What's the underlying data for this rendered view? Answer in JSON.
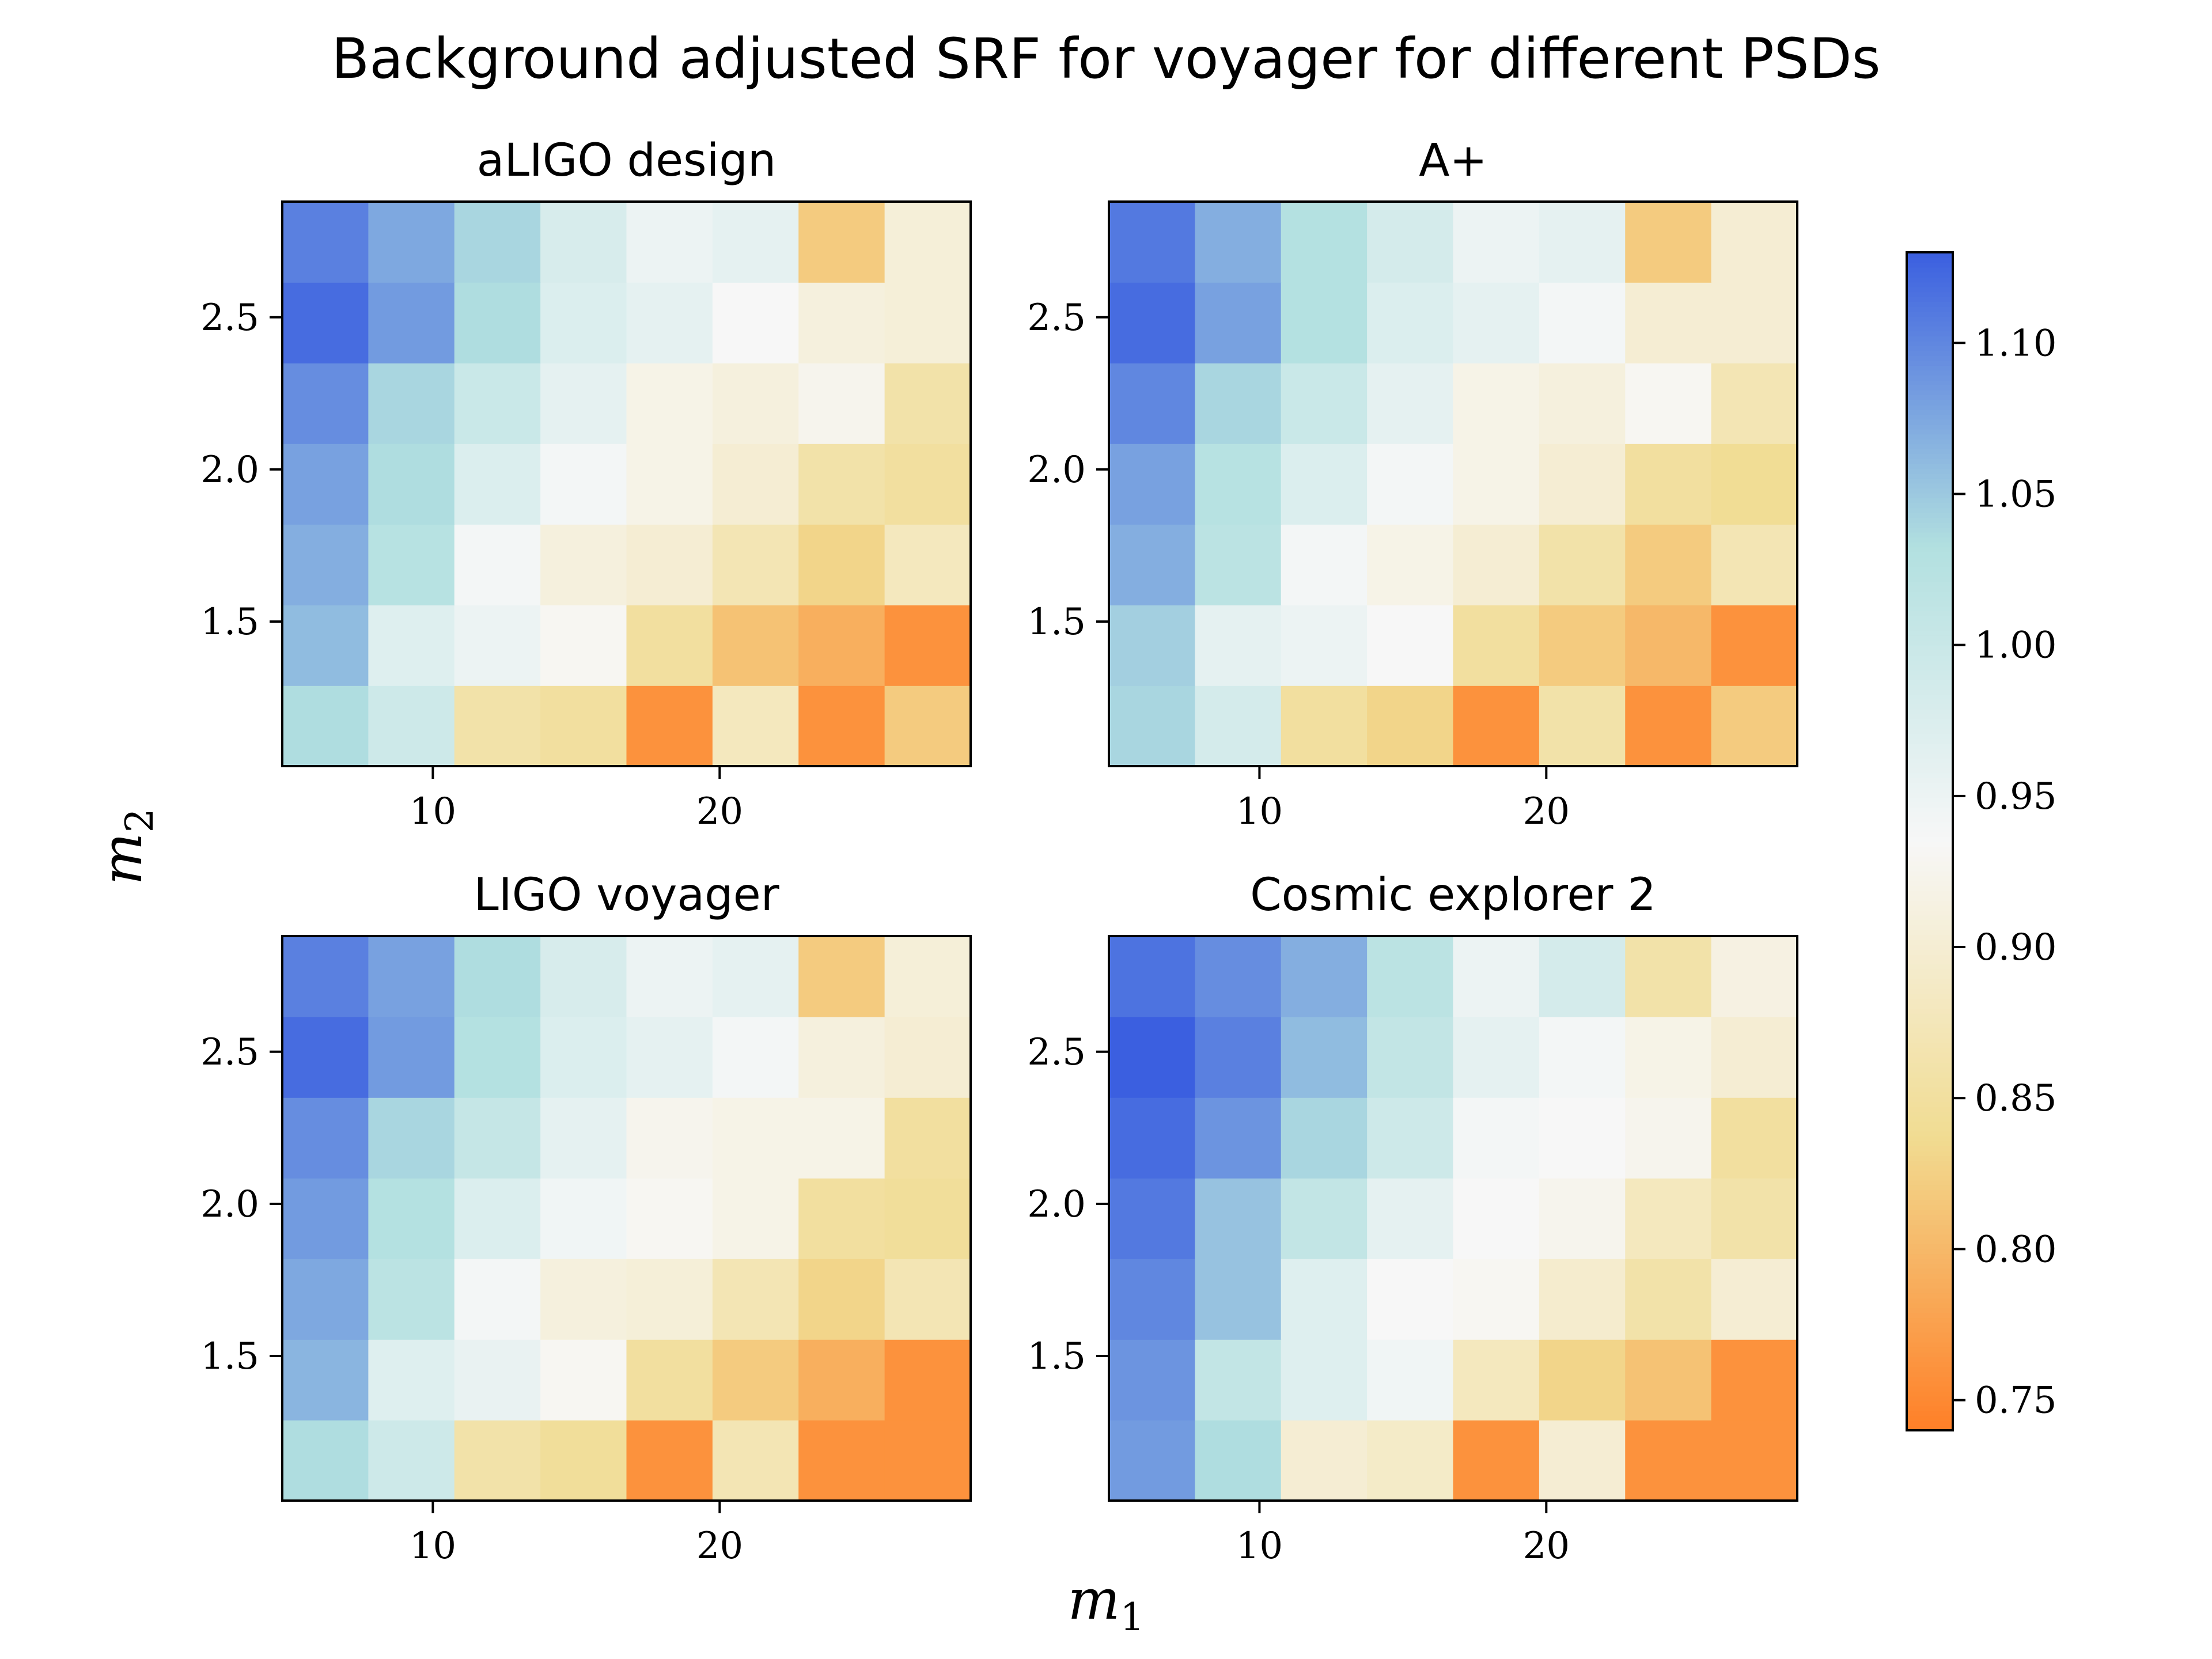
{
  "figure": {
    "suptitle": "Background adjusted SRF for voyager for different PSDs",
    "xlabel_base": "m",
    "xlabel_sub": "1",
    "ylabel_base": "m",
    "ylabel_sub": "2"
  },
  "chart_data": [
    {
      "type": "heatmap",
      "title": "aLIGO design",
      "x_edges": [
        4.75,
        7.75,
        10.75,
        13.75,
        16.75,
        19.75,
        22.75,
        25.75,
        28.75
      ],
      "y_edges": [
        1.025,
        1.29,
        1.555,
        1.82,
        2.085,
        2.35,
        2.615,
        2.88
      ],
      "xticks": [
        10,
        20
      ],
      "xtick_labels": [
        "10",
        "20"
      ],
      "yticks": [
        1.5,
        2.0,
        2.5
      ],
      "ytick_labels": [
        "1.5",
        "2.0",
        "2.5"
      ],
      "z_rows_bottom_to_top": [
        [
          1.035,
          0.995,
          0.86,
          0.85,
          0.76,
          0.88,
          0.76,
          0.82
        ],
        [
          1.06,
          0.97,
          0.95,
          0.93,
          0.85,
          0.81,
          0.79,
          0.76
        ],
        [
          1.07,
          1.025,
          0.94,
          0.91,
          0.9,
          0.87,
          0.83,
          0.88
        ],
        [
          1.08,
          1.035,
          0.975,
          0.94,
          0.92,
          0.9,
          0.86,
          0.85
        ],
        [
          1.095,
          1.04,
          1.0,
          0.96,
          0.92,
          0.91,
          0.925,
          0.86
        ],
        [
          1.12,
          1.085,
          1.035,
          0.975,
          0.96,
          0.935,
          0.91,
          0.905
        ],
        [
          1.105,
          1.075,
          1.04,
          0.98,
          0.95,
          0.96,
          0.82,
          0.905
        ]
      ]
    },
    {
      "type": "heatmap",
      "title": "A+",
      "x_edges": [
        4.75,
        7.75,
        10.75,
        13.75,
        16.75,
        19.75,
        22.75,
        25.75,
        28.75
      ],
      "y_edges": [
        1.025,
        1.29,
        1.555,
        1.82,
        2.085,
        2.35,
        2.615,
        2.88
      ],
      "xticks": [
        10,
        20
      ],
      "xtick_labels": [
        "10",
        "20"
      ],
      "yticks": [
        1.5,
        2.0,
        2.5
      ],
      "ytick_labels": [
        "1.5",
        "2.0",
        "2.5"
      ],
      "z_rows_bottom_to_top": [
        [
          1.04,
          0.985,
          0.85,
          0.83,
          0.76,
          0.86,
          0.76,
          0.82
        ],
        [
          1.045,
          0.96,
          0.95,
          0.935,
          0.85,
          0.82,
          0.8,
          0.76
        ],
        [
          1.07,
          1.02,
          0.94,
          0.92,
          0.9,
          0.86,
          0.82,
          0.87
        ],
        [
          1.08,
          1.025,
          0.975,
          0.94,
          0.92,
          0.9,
          0.85,
          0.84
        ],
        [
          1.1,
          1.04,
          1.0,
          0.96,
          0.92,
          0.91,
          0.93,
          0.87
        ],
        [
          1.12,
          1.08,
          1.03,
          0.975,
          0.96,
          0.94,
          0.9,
          0.9
        ],
        [
          1.11,
          1.07,
          1.03,
          0.985,
          0.95,
          0.96,
          0.82,
          0.9
        ]
      ]
    },
    {
      "type": "heatmap",
      "title": "LIGO voyager",
      "x_edges": [
        4.75,
        7.75,
        10.75,
        13.75,
        16.75,
        19.75,
        22.75,
        25.75,
        28.75
      ],
      "y_edges": [
        1.025,
        1.29,
        1.555,
        1.82,
        2.085,
        2.35,
        2.615,
        2.88
      ],
      "xticks": [
        10,
        20
      ],
      "xtick_labels": [
        "10",
        "20"
      ],
      "yticks": [
        1.5,
        2.0,
        2.5
      ],
      "ytick_labels": [
        "1.5",
        "2.0",
        "2.5"
      ],
      "z_rows_bottom_to_top": [
        [
          1.035,
          0.995,
          0.86,
          0.845,
          0.76,
          0.87,
          0.76,
          0.76
        ],
        [
          1.065,
          0.97,
          0.955,
          0.93,
          0.85,
          0.82,
          0.79,
          0.76
        ],
        [
          1.075,
          1.02,
          0.94,
          0.91,
          0.905,
          0.87,
          0.83,
          0.87
        ],
        [
          1.085,
          1.03,
          0.975,
          0.945,
          0.93,
          0.92,
          0.85,
          0.845
        ],
        [
          1.095,
          1.04,
          1.005,
          0.96,
          0.925,
          0.92,
          0.92,
          0.85
        ],
        [
          1.12,
          1.085,
          1.03,
          0.975,
          0.96,
          0.94,
          0.91,
          0.9
        ],
        [
          1.105,
          1.08,
          1.035,
          0.98,
          0.95,
          0.96,
          0.82,
          0.905
        ]
      ]
    },
    {
      "type": "heatmap",
      "title": "Cosmic explorer 2",
      "x_edges": [
        4.75,
        7.75,
        10.75,
        13.75,
        16.75,
        19.75,
        22.75,
        25.75,
        28.75
      ],
      "y_edges": [
        1.025,
        1.29,
        1.555,
        1.82,
        2.085,
        2.35,
        2.615,
        2.88
      ],
      "xticks": [
        10,
        20
      ],
      "xtick_labels": [
        "10",
        "20"
      ],
      "yticks": [
        1.5,
        2.0,
        2.5
      ],
      "ytick_labels": [
        "1.5",
        "2.0",
        "2.5"
      ],
      "z_rows_bottom_to_top": [
        [
          1.085,
          1.035,
          0.9,
          0.89,
          0.76,
          0.9,
          0.76,
          0.76
        ],
        [
          1.09,
          1.01,
          0.97,
          0.945,
          0.88,
          0.83,
          0.81,
          0.76
        ],
        [
          1.1,
          1.055,
          0.97,
          0.935,
          0.93,
          0.895,
          0.86,
          0.9
        ],
        [
          1.11,
          1.055,
          1.01,
          0.96,
          0.935,
          0.925,
          0.88,
          0.86
        ],
        [
          1.12,
          1.09,
          1.04,
          0.995,
          0.94,
          0.935,
          0.925,
          0.85
        ],
        [
          1.135,
          1.105,
          1.06,
          1.01,
          0.96,
          0.94,
          0.92,
          0.9
        ],
        [
          1.115,
          1.095,
          1.07,
          1.02,
          0.95,
          0.985,
          0.86,
          0.915
        ]
      ]
    }
  ],
  "colorbar": {
    "vmin": 0.74,
    "vmax": 1.13,
    "ticks": [
      0.75,
      0.8,
      0.85,
      0.9,
      0.95,
      1.0,
      1.05,
      1.1
    ],
    "tick_labels": [
      "0.75",
      "0.80",
      "0.85",
      "0.90",
      "0.95",
      "1.00",
      "1.05",
      "1.10"
    ],
    "colors_low_to_high": [
      "#ff7f27",
      "#f1dc92",
      "#f7f7f7",
      "#b2e0e0",
      "#3b5fe0"
    ]
  }
}
